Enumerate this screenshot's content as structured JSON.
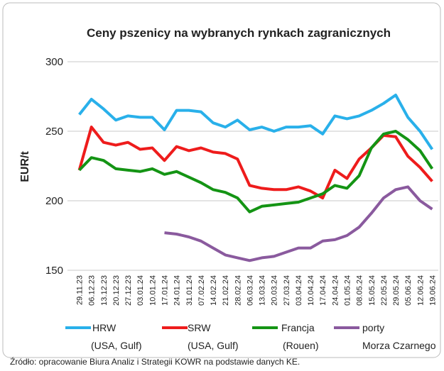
{
  "chart_data": {
    "type": "line",
    "title": "Ceny pszenicy na wybranych rynkach zagranicznych",
    "y_label": "EUR/t",
    "source": "Źródło: opracowanie Biura Analiz i Strategii KOWR na podstawie danych KE.",
    "categories": [
      "29.11.23",
      "06.12.23",
      "13.12.23",
      "20.12.23",
      "27.12.23",
      "03.01.24",
      "10.01.24",
      "17.01.24",
      "24.01.24",
      "31.01.24",
      "07.02.24",
      "14.02.24",
      "21.02.24",
      "28.02.24",
      "06.03.24",
      "13.03.24",
      "20.03.24",
      "27.03.24",
      "03.04.24",
      "10.04.24",
      "17.04.24",
      "24.04.24",
      "01.05.24",
      "08.05.24",
      "15.05.24",
      "22.05.24",
      "29.05.24",
      "05.06.24",
      "12.06.24",
      "19.06.24"
    ],
    "series": [
      {
        "name": "HRW",
        "subname": "(USA, Gulf)",
        "color": "#29b0ea",
        "values": [
          262,
          273,
          266,
          258,
          261,
          260,
          260,
          251,
          265,
          265,
          264,
          256,
          253,
          258,
          251,
          253,
          250,
          253,
          253,
          254,
          248,
          261,
          259,
          261,
          265,
          270,
          276,
          260,
          250,
          237
        ]
      },
      {
        "name": "SRW",
        "subname": "(USA, Gulf)",
        "color": "#ee1c1c",
        "values": [
          222,
          253,
          242,
          240,
          242,
          237,
          238,
          229,
          239,
          236,
          238,
          235,
          234,
          230,
          211,
          209,
          208,
          208,
          210,
          207,
          202,
          222,
          216,
          230,
          238,
          247,
          246,
          232,
          224,
          214
        ]
      },
      {
        "name": "Francja",
        "subname": "(Rouen)",
        "color": "#149414",
        "values": [
          222,
          231,
          229,
          223,
          222,
          221,
          223,
          219,
          221,
          217,
          213,
          208,
          206,
          202,
          192,
          196,
          197,
          198,
          199,
          202,
          205,
          211,
          209,
          218,
          238,
          248,
          250,
          244,
          236,
          223
        ]
      },
      {
        "name": "porty",
        "subname": "Morza Czarnego",
        "color": "#8a5a9e",
        "values": [
          null,
          null,
          null,
          null,
          null,
          null,
          null,
          177,
          176,
          174,
          171,
          166,
          161,
          159,
          157,
          159,
          160,
          163,
          166,
          166,
          171,
          172,
          175,
          181,
          191,
          202,
          208,
          210,
          200,
          194
        ]
      }
    ],
    "ylim": [
      150,
      300
    ],
    "yticks": [
      150,
      200,
      250,
      300
    ],
    "grid": true
  }
}
